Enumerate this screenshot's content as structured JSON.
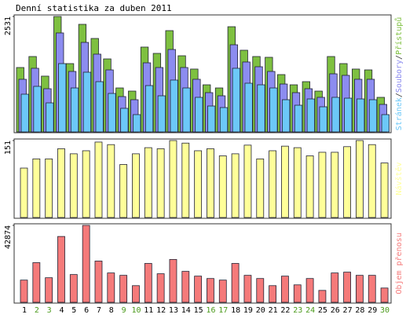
{
  "chart_data": [
    {
      "type": "bar",
      "title": "Denní statistika za duben 2011",
      "categories": [
        "1",
        "2",
        "3",
        "4",
        "5",
        "6",
        "7",
        "8",
        "9",
        "10",
        "11",
        "12",
        "13",
        "14",
        "15",
        "16",
        "17",
        "18",
        "19",
        "20",
        "21",
        "22",
        "23",
        "24",
        "25",
        "26",
        "27",
        "28",
        "29",
        "30"
      ],
      "category_colors": [
        "#000",
        "#4a9a1a",
        "#4a9a1a",
        "#000",
        "#000",
        "#000",
        "#000",
        "#000",
        "#4a9a1a",
        "#4a9a1a",
        "#000",
        "#000",
        "#000",
        "#000",
        "#000",
        "#4a9a1a",
        "#4a9a1a",
        "#000",
        "#000",
        "#000",
        "#000",
        "#000",
        "#4a9a1a",
        "#4a9a1a",
        "#000",
        "#000",
        "#000",
        "#000",
        "#000",
        "#4a9a1a"
      ],
      "legend_separator": "/",
      "ylim": [
        0,
        2531
      ],
      "yticks": [
        2531
      ],
      "series": [
        {
          "name": "Přístupů",
          "color": "#7ec040",
          "values": [
            1412,
            1653,
            1223,
            2531,
            1498,
            2359,
            2049,
            1601,
            964,
            895,
            1860,
            1722,
            2221,
            1670,
            1378,
            1033,
            964,
            2307,
            1791,
            1653,
            1636,
            1257,
            1033,
            1102,
            895,
            1653,
            1498,
            1378,
            1360,
            758
          ]
        },
        {
          "name": "Soubory",
          "color": "#8c8cf0",
          "values": [
            1154,
            1395,
            947,
            2170,
            1326,
            1963,
            1705,
            1360,
            775,
            706,
            1515,
            1412,
            1808,
            1412,
            1154,
            861,
            792,
            1911,
            1533,
            1429,
            1326,
            1050,
            861,
            947,
            758,
            1274,
            1240,
            1154,
            1154,
            603
          ]
        },
        {
          "name": "Stránek",
          "color": "#6cc8f8",
          "values": [
            827,
            999,
            637,
            1498,
            964,
            1309,
            1102,
            844,
            517,
            379,
            1016,
            792,
            1137,
            964,
            758,
            568,
            534,
            1395,
            1068,
            1033,
            964,
            706,
            585,
            723,
            551,
            758,
            740,
            723,
            706,
            379
          ]
        }
      ]
    },
    {
      "type": "bar",
      "ylim": [
        0,
        151
      ],
      "yticks": [
        151
      ],
      "series": [
        {
          "name": "Návštěv",
          "color": "#ffff99",
          "values": [
            97,
            115,
            115,
            135,
            125,
            131,
            148,
            143,
            104,
            125,
            137,
            135,
            151,
            146,
            131,
            135,
            121,
            125,
            142,
            115,
            131,
            140,
            137,
            121,
            128,
            128,
            139,
            151,
            143,
            107
          ]
        }
      ]
    },
    {
      "type": "bar",
      "ylim": [
        0,
        42874
      ],
      "yticks": [
        42874
      ],
      "series": [
        {
          "name": "Objem přenosu",
          "color": "#f57a7a",
          "values": [
            12376,
            22100,
            13702,
            36686,
            15470,
            42874,
            22984,
            16354,
            15028,
            9282,
            21658,
            15912,
            23868,
            17238,
            14586,
            13260,
            12376,
            21658,
            15028,
            13260,
            9282,
            14586,
            9724,
            13260,
            6630,
            16354,
            16796,
            15028,
            15028,
            7956
          ]
        }
      ]
    }
  ]
}
